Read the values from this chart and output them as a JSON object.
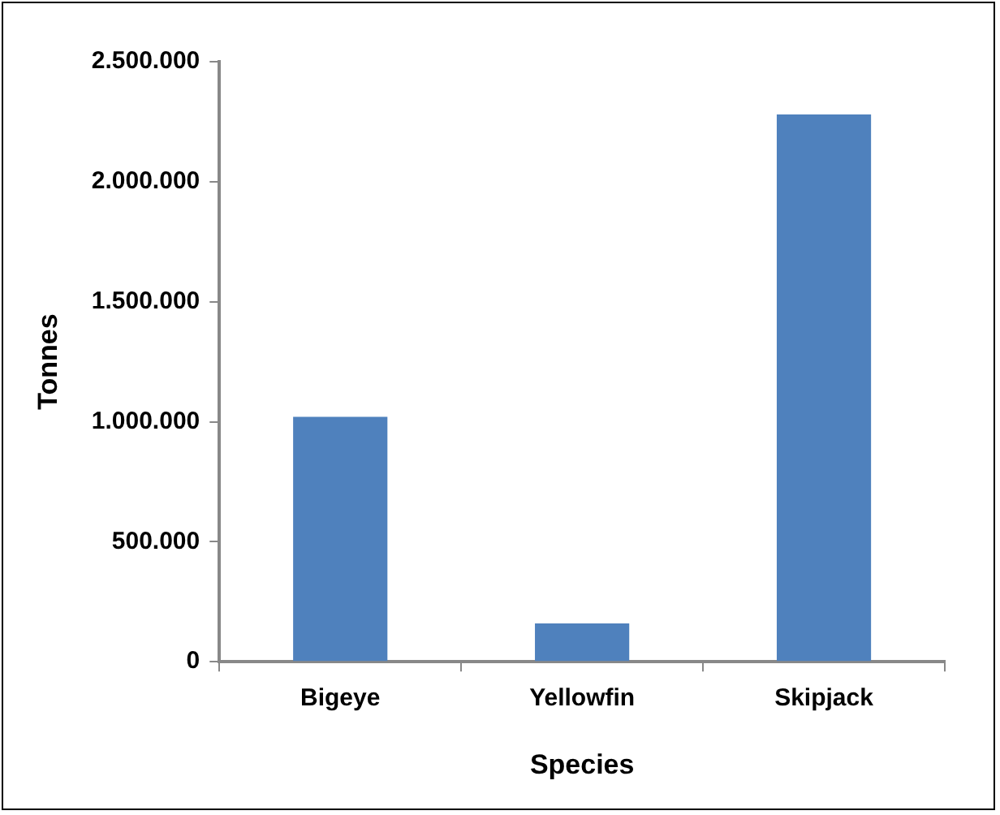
{
  "chart_data": {
    "type": "bar",
    "xlabel": "Species",
    "ylabel": "Tonnes",
    "categories": [
      "Bigeye",
      "Yellowfin",
      "Skipjack"
    ],
    "values": [
      1020000,
      160000,
      2280000
    ],
    "color": "#4f81bd",
    "ylim": [
      0,
      2500000
    ],
    "yticks": [
      {
        "value": 0,
        "label": "0"
      },
      {
        "value": 500000,
        "label": "500.000"
      },
      {
        "value": 1000000,
        "label": "1.000.000"
      },
      {
        "value": 1500000,
        "label": "1.500.000"
      },
      {
        "value": 2000000,
        "label": "2.000.000"
      },
      {
        "value": 2500000,
        "label": "2.500.000"
      }
    ],
    "grid": false,
    "legend": false
  }
}
